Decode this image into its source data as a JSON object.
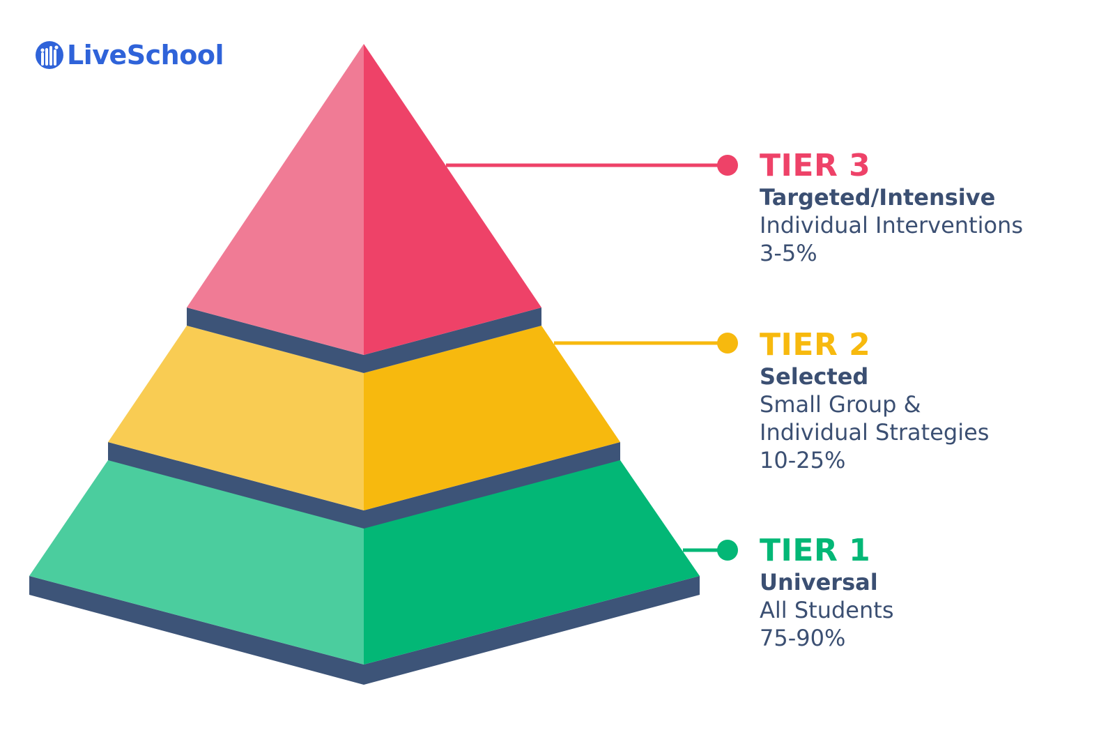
{
  "brand": {
    "name": "LiveSchool",
    "color": "#2f63d9",
    "icon": "raised-hands-icon"
  },
  "colors": {
    "tier3_light": "#f07b95",
    "tier3_dark": "#ee4268",
    "tier2_light": "#f9cc53",
    "tier2_dark": "#f7b90e",
    "tier1_light": "#4bcd9e",
    "tier1_dark": "#03b776",
    "base": "#3d5478",
    "text": "#3b4f72"
  },
  "tiers": [
    {
      "title": "TIER 3",
      "subtitle": "Targeted/Intensive",
      "lines": [
        "Individual Interventions",
        "3-5%"
      ],
      "color": "#ee4268"
    },
    {
      "title": "TIER 2",
      "subtitle": "Selected",
      "lines": [
        "Small Group &",
        "Individual Strategies",
        "10-25%"
      ],
      "color": "#f7b90e"
    },
    {
      "title": "TIER 1",
      "subtitle": "Universal",
      "lines": [
        "All Students",
        "75-90%"
      ],
      "color": "#03b776"
    }
  ]
}
